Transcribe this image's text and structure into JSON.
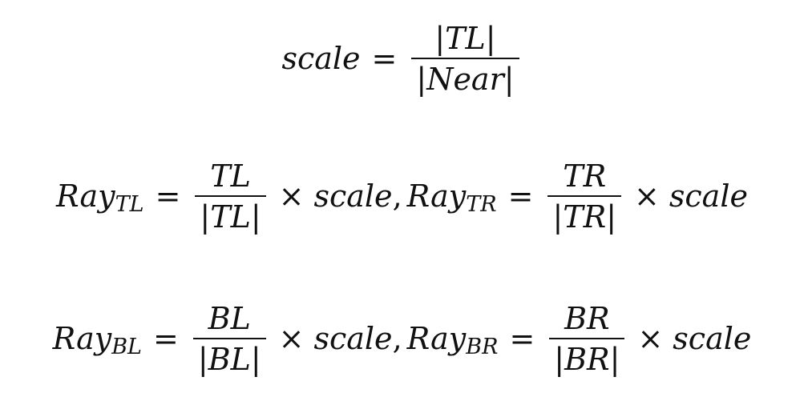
{
  "equations": {
    "scale_def": {
      "lhs": "scale",
      "eq": "=",
      "num_inner": "TL",
      "den_inner": "Near"
    },
    "top_rays": {
      "ray": "Ray",
      "sub_left": "TL",
      "eq": "=",
      "num_left": "TL",
      "den_left_inner": "TL",
      "times": "×",
      "scale_left": "scale",
      "comma": ",",
      "sub_right": "TR",
      "num_right": "TR",
      "den_right_inner": "TR",
      "scale_right": "scale"
    },
    "bottom_rays": {
      "ray": "Ray",
      "sub_left": "BL",
      "eq": "=",
      "num_left": "BL",
      "den_left_inner": "BL",
      "times": "×",
      "scale_left": "scale",
      "comma": ",",
      "sub_right": "BR",
      "num_right": "BR",
      "den_right_inner": "BR",
      "scale_right": "scale"
    },
    "abs_bar": "|"
  }
}
